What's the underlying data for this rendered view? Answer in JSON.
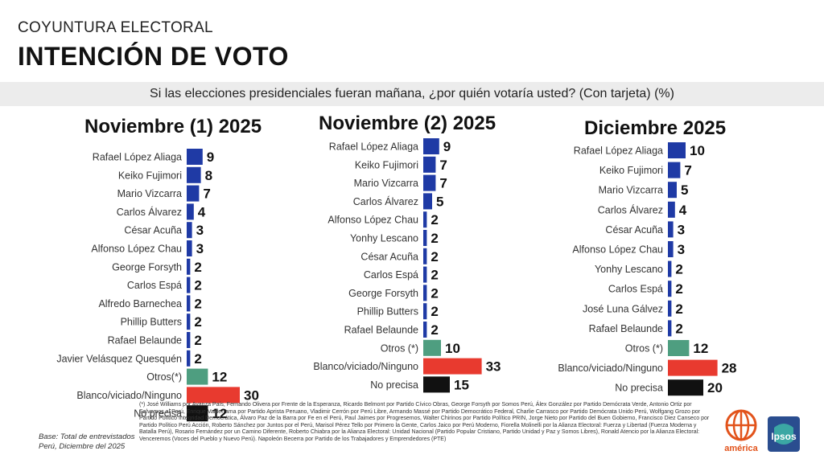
{
  "header": {
    "kicker": "COYUNTURA ELECTORAL",
    "title": "INTENCIÓN DE VOTO",
    "question": "Si las elecciones presidenciales fueran mañana, ¿por quién votaría usted? (Con tarjeta) (%)"
  },
  "colors": {
    "candidate": "#1f3aa5",
    "otros": "#4e9e80",
    "blanco": "#e83a2f",
    "no_precisa": "#111111"
  },
  "chart_data": [
    {
      "type": "bar",
      "title": "Noviembre (1) 2025",
      "orientation": "horizontal",
      "categories": [
        "Rafael López Aliaga",
        "Keiko Fujimori",
        "Mario Vizcarra",
        "Carlos Álvarez",
        "César Acuña",
        "Alfonso López Chau",
        "George Forsyth",
        "Carlos Espá",
        "Alfredo Barnechea",
        "Phillip Butters",
        "Rafael Belaunde",
        "Javier Velásquez Quesquén",
        "Otros(*)",
        "Blanco/viciado/Ninguno",
        "No precisa"
      ],
      "values": [
        9,
        8,
        7,
        4,
        3,
        3,
        2,
        2,
        2,
        2,
        2,
        2,
        12,
        30,
        12
      ]
    },
    {
      "type": "bar",
      "title": "Noviembre (2) 2025",
      "orientation": "horizontal",
      "categories": [
        "Rafael López Aliaga",
        "Keiko Fujimori",
        "Mario Vizcarra",
        "Carlos Álvarez",
        "Alfonso López Chau",
        "Yonhy Lescano",
        "César Acuña",
        "Carlos Espá",
        "George Forsyth",
        "Phillip Butters",
        "Rafael Belaunde",
        "Otros (*)",
        "Blanco/viciado/Ninguno",
        "No precisa"
      ],
      "values": [
        9,
        7,
        7,
        5,
        2,
        2,
        2,
        2,
        2,
        2,
        2,
        10,
        33,
        15
      ]
    },
    {
      "type": "bar",
      "title": "Diciembre 2025",
      "orientation": "horizontal",
      "categories": [
        "Rafael López Aliaga",
        "Keiko Fujimori",
        "Mario Vizcarra",
        "Carlos Álvarez",
        "César Acuña",
        "Alfonso López Chau",
        "Yonhy Lescano",
        "Carlos Espá",
        "José Luna Gálvez",
        "Rafael Belaunde",
        "Otros (*)",
        "Blanco/viciado/Ninguno",
        "No precisa"
      ],
      "values": [
        10,
        7,
        5,
        4,
        3,
        3,
        2,
        2,
        2,
        2,
        12,
        28,
        20
      ]
    }
  ],
  "footnote": "(*) José Williams por Avanza País, Fernando Olivera por Frente de la Esperanza, Ricardo Belmont por Partido Cívico Obras, George Forsyth por Somos Perú, Álex González por Partido Demócrata Verde, Antonio Ortiz por Salvemos al Perú, Enrique Valderrama por Partido Aprista Peruano, Vladimir Cerrón por Perú Libre, Armando Massé por Partido Democrático Federal, Charlie Carrasco por Partido Demócrata Unido Perú, Wolfgang Grozo por Partido Político Integridad Democrática, Álvaro Paz de la Barra por Fe en el Perú, Paul Jaimes por Progresemos, Walter Chirinos por Partido Político PRIN, Jorge Nieto por Partido del Buen Gobierno, Francisco Diez Canseco por Partido Político Perú Acción, Roberto Sánchez por Juntos por el Perú, Marisol Pérez Tello por Primero la Gente, Carlos Jaico por Perú Moderno, Fiorella Molinelli por la Alianza Electoral: Fuerza y Libertad (Fuerza Moderna y Batalla Perú), Rosario Fernández por un Camino Diferente, Roberto Chiabra por la Alianza Electoral: Unidad Nacional (Partido Popular Cristiano, Partido Unidad y Paz y Somos Libres), Ronald Atencio por la Alianza Electoral: Venceremos (Voces del Pueblo y Nuevo Perú). Napoleón Becerra por Partido de los Trabajadores y Emprendedores (PTE)",
  "base": {
    "line1": "Base: Total de entrevistados",
    "line2": "Perú, Diciembre del 2025"
  },
  "logos": {
    "america_text": "américa",
    "ipsos_text": "Ipsos"
  }
}
